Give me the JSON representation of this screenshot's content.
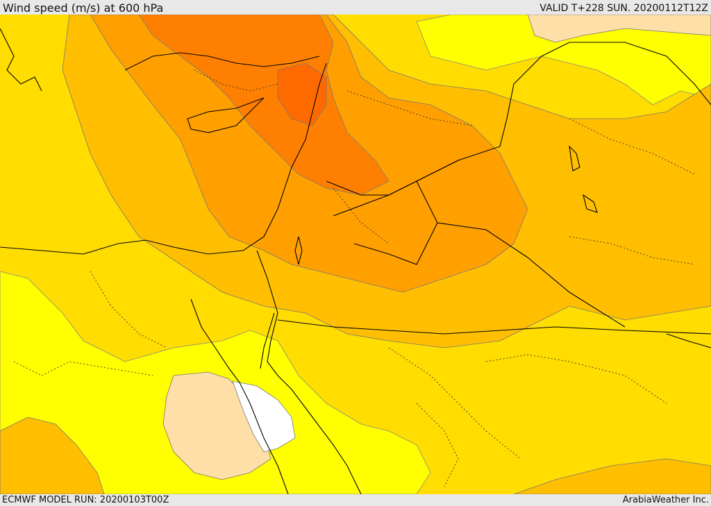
{
  "header": {
    "title": "Wind speed (m/s) at 600 hPa",
    "valid": "VALID T+228 SUN. 20200112T12Z"
  },
  "footer": {
    "model_run": "ECMWF MODEL RUN: 20200103T00Z",
    "credit": "ArabiaWeather Inc."
  },
  "legend_colors": {
    "very_low": "#ffffff",
    "low": "#ffdfa8",
    "light": "#ffff00",
    "moderate": "#ffdd00",
    "moderate_high": "#ffbf00",
    "high": "#ffa000",
    "very_high": "#ff8000",
    "extreme": "#ff6a00"
  }
}
